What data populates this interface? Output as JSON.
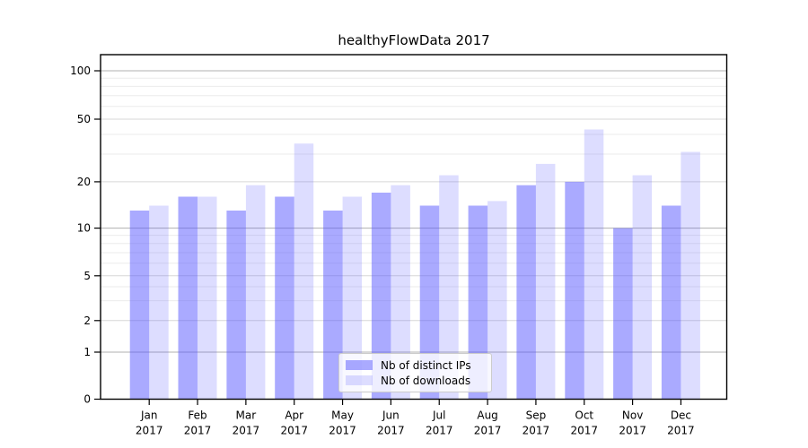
{
  "chart_data": {
    "type": "bar",
    "title": "healthyFlowData 2017",
    "x_months": [
      "Jan",
      "Feb",
      "Mar",
      "Apr",
      "May",
      "Jun",
      "Jul",
      "Aug",
      "Sep",
      "Oct",
      "Nov",
      "Dec"
    ],
    "x_year": "2017",
    "categories": [
      "Jan 2017",
      "Feb 2017",
      "Mar 2017",
      "Apr 2017",
      "May 2017",
      "Jun 2017",
      "Jul 2017",
      "Aug 2017",
      "Sep 2017",
      "Oct 2017",
      "Nov 2017",
      "Dec 2017"
    ],
    "series": [
      {
        "name": "Nb of distinct IPs",
        "color": "rgba(85,85,255,0.5)",
        "values": [
          13,
          16,
          13,
          16,
          13,
          17,
          14,
          14,
          19,
          20,
          10,
          14
        ]
      },
      {
        "name": "Nb of downloads",
        "color": "rgba(85,85,255,0.2)",
        "values": [
          14,
          16,
          19,
          35,
          16,
          19,
          22,
          15,
          26,
          43,
          22,
          31
        ]
      }
    ],
    "yscale": "log-like with 0 baseline",
    "y_tick_labels": [
      "100",
      "50",
      "20",
      "10",
      "5",
      "2",
      "1",
      "0"
    ],
    "y_major_gridlines": [
      1,
      10,
      100
    ],
    "y_mid_gridlines": [
      2,
      5,
      20,
      50
    ],
    "y_minor_gridlines": [
      3,
      4,
      6,
      7,
      8,
      9,
      30,
      40,
      60,
      70,
      80,
      90
    ],
    "ylim": [
      0,
      130
    ],
    "grid": "horizontal only",
    "legend_position": "lower center",
    "xlabel": "",
    "ylabel": ""
  },
  "colors": {
    "bar_base": "#5555ff",
    "grid_major": "#b0b0b0",
    "grid_mid": "#d7d7d7",
    "grid_minor": "#ebebeb",
    "spine": "#000000",
    "legend_border": "#cccccc",
    "text": "#000000"
  }
}
